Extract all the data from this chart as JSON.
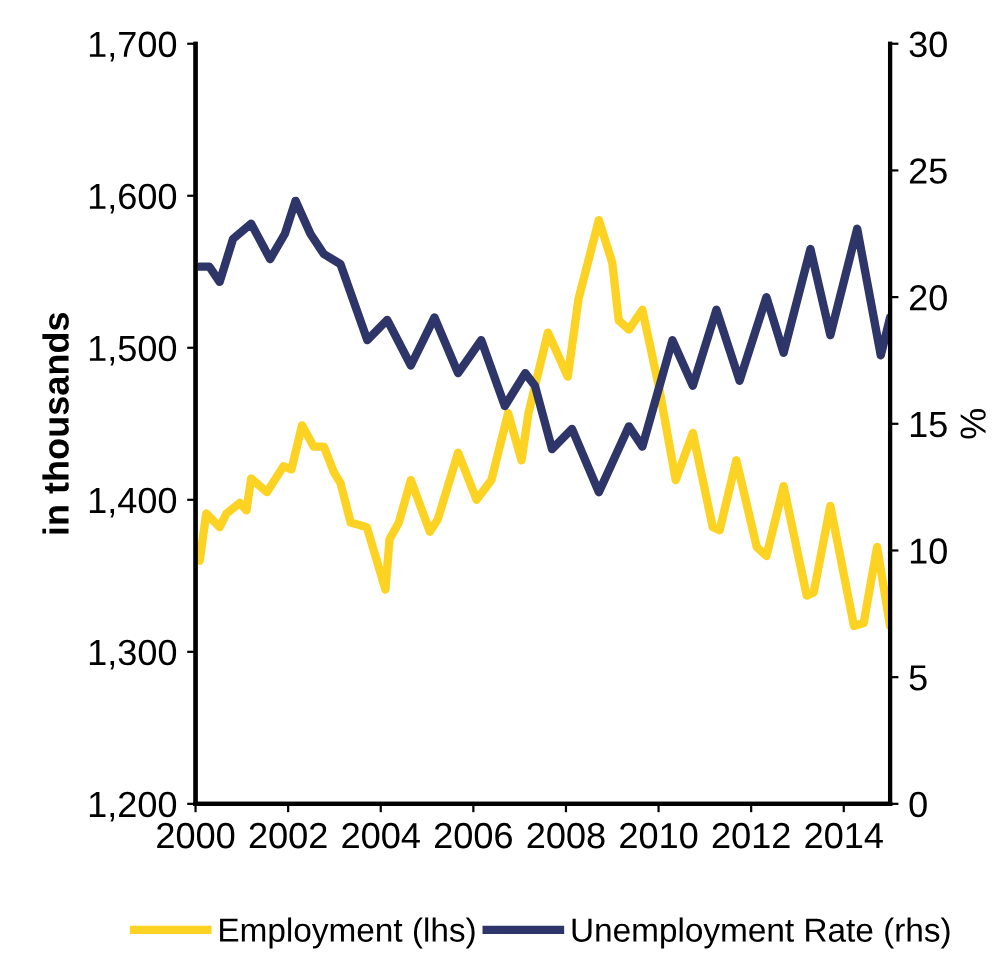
{
  "chart_data": {
    "type": "line",
    "ylabel": "in thousands",
    "y2label": "%",
    "xlim": [
      2000,
      2015
    ],
    "xticks": [
      2000,
      2002,
      2004,
      2006,
      2008,
      2010,
      2012,
      2014
    ],
    "ylim": [
      1200,
      1700
    ],
    "yticks": [
      {
        "value": 1200,
        "label": "1,200"
      },
      {
        "value": 1300,
        "label": "1,300"
      },
      {
        "value": 1400,
        "label": "1,400"
      },
      {
        "value": 1500,
        "label": "1,500"
      },
      {
        "value": 1600,
        "label": "1,600"
      },
      {
        "value": 1700,
        "label": "1,700"
      }
    ],
    "y2lim": [
      0,
      30
    ],
    "y2ticks": [
      0,
      5,
      10,
      15,
      20,
      25,
      30
    ],
    "grid": false,
    "legend": "bottom",
    "marker": "none",
    "line_style": "solid",
    "series": [
      {
        "name": "Employment (lhs)",
        "color": "#fdd323",
        "x": [
          2000.09,
          2000.23,
          2000.52,
          2000.67,
          2000.96,
          2001.1,
          2001.2,
          2001.54,
          2001.9,
          2002.07,
          2002.3,
          2002.55,
          2002.77,
          2002.99,
          2003.13,
          2003.35,
          2003.7,
          2004.1,
          2004.19,
          2004.39,
          2004.65,
          2005.06,
          2005.23,
          2005.67,
          2006.07,
          2006.39,
          2006.75,
          2007.04,
          2007.19,
          2007.61,
          2008.04,
          2008.27,
          2008.71,
          2009.0,
          2009.14,
          2009.36,
          2009.65,
          2010.01,
          2010.37,
          2010.74,
          2011.17,
          2011.32,
          2011.68,
          2012.12,
          2012.33,
          2012.7,
          2013.2,
          2013.35,
          2013.71,
          2014.22,
          2014.43,
          2014.72,
          2015.0
        ],
        "values": [
          1360,
          1391,
          1382,
          1391,
          1398,
          1393,
          1414,
          1405,
          1422,
          1420,
          1449,
          1435,
          1435,
          1418,
          1411,
          1385,
          1382,
          1341,
          1374,
          1385,
          1413,
          1379,
          1387,
          1431,
          1400,
          1413,
          1457,
          1426,
          1457,
          1510,
          1481,
          1532,
          1584,
          1556,
          1518,
          1512,
          1525,
          1474,
          1413,
          1444,
          1382,
          1380,
          1426,
          1369,
          1363,
          1409,
          1337,
          1339,
          1396,
          1317,
          1319,
          1369,
          1317
        ]
      },
      {
        "name": "Unemployment Rate (rhs)",
        "color": "#2e3568",
        "axis": "y2",
        "x": [
          2000.09,
          2000.3,
          2000.52,
          2000.81,
          2001.2,
          2001.61,
          2001.93,
          2002.16,
          2002.48,
          2002.77,
          2003.13,
          2003.71,
          2004.14,
          2004.65,
          2005.16,
          2005.67,
          2006.17,
          2006.68,
          2007.12,
          2007.33,
          2007.7,
          2008.13,
          2008.71,
          2009.36,
          2009.65,
          2010.3,
          2010.74,
          2011.25,
          2011.75,
          2012.33,
          2012.7,
          2013.28,
          2013.71,
          2014.29,
          2014.8,
          2015.0
        ],
        "values": [
          21.2,
          21.2,
          20.6,
          22.3,
          22.9,
          21.5,
          22.5,
          23.8,
          22.5,
          21.7,
          21.3,
          18.3,
          19.1,
          17.3,
          19.2,
          17.0,
          18.3,
          15.7,
          17.0,
          16.5,
          14.0,
          14.8,
          12.3,
          14.9,
          14.1,
          18.3,
          16.5,
          19.5,
          16.7,
          20.0,
          17.8,
          21.9,
          18.5,
          22.7,
          17.7,
          19.2
        ]
      }
    ]
  }
}
